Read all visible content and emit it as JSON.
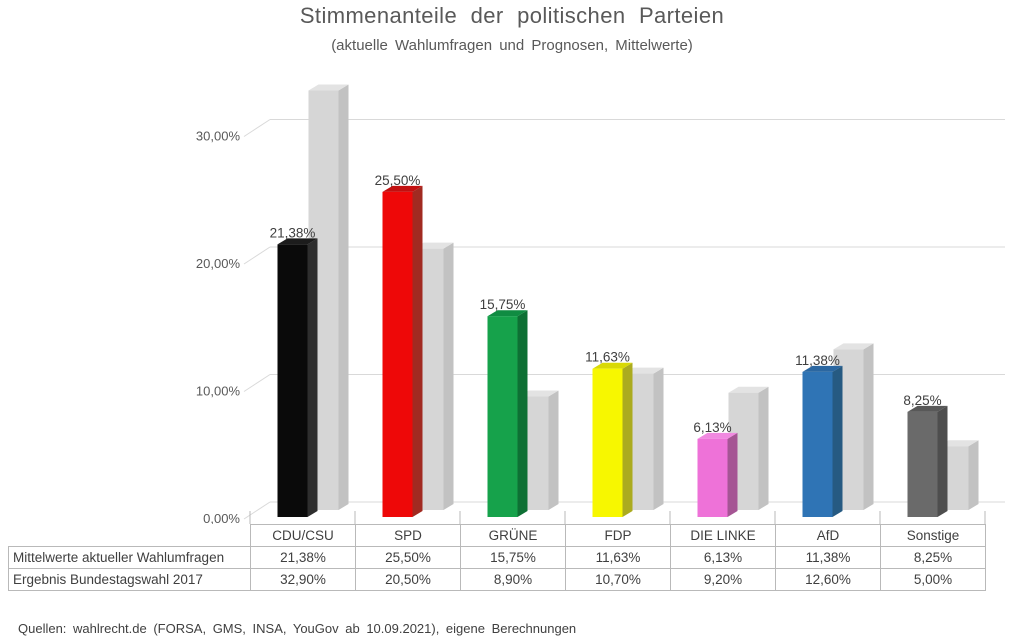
{
  "header": {
    "title": "Stimmenanteile der politischen Parteien",
    "subtitle": "(aktuelle Wahlumfragen und Prognosen, Mittelwerte)"
  },
  "footer": {
    "source_text": "Quellen: wahlrecht.de (FORSA, GMS, INSA, YouGov ab 10.09.2021), eigene Berechnungen"
  },
  "chart_data": {
    "type": "bar",
    "variant": "3d-clustered-column",
    "title": "Stimmenanteile der politischen Parteien",
    "subtitle": "(aktuelle Wahlumfragen und Prognosen, Mittelwerte)",
    "categories": [
      "CDU/CSU",
      "SPD",
      "GRÜNE",
      "FDP",
      "DIE LINKE",
      "AfD",
      "Sonstige"
    ],
    "series": [
      {
        "name": "Mittelwerte aktueller Wahlumfragen",
        "values": [
          21.38,
          25.5,
          15.75,
          11.63,
          6.13,
          11.38,
          8.25
        ],
        "labels": [
          "21,38%",
          "25,50%",
          "15,75%",
          "11,63%",
          "6,13%",
          "11,38%",
          "8,25%"
        ],
        "colors": [
          {
            "front": "#0a0a0a",
            "side": "#2e2e2e",
            "top": "#1c1c1c"
          },
          {
            "front": "#ee0808",
            "side": "#a12a21",
            "top": "#c21010"
          },
          {
            "front": "#16a24b",
            "side": "#0e7034",
            "top": "#108c42"
          },
          {
            "front": "#f7f700",
            "side": "#abab1f",
            "top": "#d9d904"
          },
          {
            "front": "#ee72d8",
            "side": "#a55594",
            "top": "#f089e0"
          },
          {
            "front": "#2f74b5",
            "side": "#265a82",
            "top": "#2b67a1"
          },
          {
            "front": "#6a6a6a",
            "side": "#4e4e4e",
            "top": "#585858"
          }
        ]
      },
      {
        "name": "Ergebnis Bundestagswahl 2017",
        "values": [
          32.9,
          20.5,
          8.9,
          10.7,
          9.2,
          12.6,
          5.0
        ],
        "labels": [
          "32,90%",
          "20,50%",
          "8,90%",
          "10,70%",
          "9,20%",
          "12,60%",
          "5,00%"
        ],
        "color": {
          "front": "#d6d6d6",
          "side": "#c2c2c2",
          "top": "#e3e3e3"
        }
      }
    ],
    "y_axis": {
      "tick_labels": [
        "0,00%",
        "10,00%",
        "20,00%",
        "30,00%"
      ],
      "tick_values": [
        0,
        10,
        20,
        30
      ],
      "ylim": [
        0,
        35
      ],
      "unit": "%"
    },
    "grid": true,
    "data_labels_shown_for_series": "Mittelwerte aktueller Wahlumfragen",
    "legend_position": "data-table-below-chart",
    "style_colors": {
      "gridline": "#d9d9d9",
      "axis_stub": "#d9d9d9",
      "category_tick": "#b9b9b9",
      "bar_label_text": "#3f3f3f",
      "axis_label_text": "#595959",
      "table_border": "#b9b9b9",
      "table_text": "#3f3f3f",
      "title_text": "#595959"
    }
  },
  "table": {
    "header_row": [
      "CDU/CSU",
      "SPD",
      "GRÜNE",
      "FDP",
      "DIE LINKE",
      "AfD",
      "Sonstige"
    ],
    "rows": [
      {
        "label": "Mittelwerte aktueller Wahlumfragen",
        "values": [
          "21,38%",
          "25,50%",
          "15,75%",
          "11,63%",
          "6,13%",
          "11,38%",
          "8,25%"
        ]
      },
      {
        "label": "Ergebnis Bundestagswahl 2017",
        "values": [
          "32,90%",
          "20,50%",
          "8,90%",
          "10,70%",
          "9,20%",
          "12,60%",
          "5,00%"
        ]
      }
    ]
  }
}
